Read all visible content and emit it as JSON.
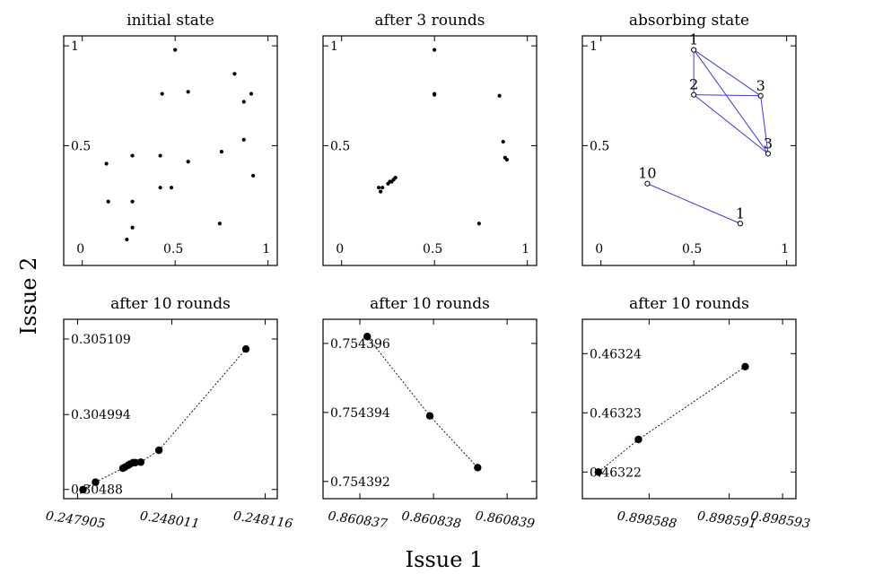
{
  "figure": {
    "xlabel": "Issue 1",
    "ylabel": "Issue 2"
  },
  "chart_data": [
    {
      "type": "scatter",
      "title": "initial state",
      "xlim": [
        -0.1,
        1.05
      ],
      "ylim": [
        -0.1,
        1.05
      ],
      "xticks": [
        0,
        0.5,
        1
      ],
      "yticks": [
        0.5,
        1
      ],
      "xtick_labels": [
        "0",
        "0.5",
        "1"
      ],
      "ytick_labels": [
        "0.5",
        "1"
      ],
      "corner_label": "0",
      "points": [
        [
          0.5,
          0.98
        ],
        [
          0.82,
          0.86
        ],
        [
          0.43,
          0.76
        ],
        [
          0.57,
          0.77
        ],
        [
          0.91,
          0.76
        ],
        [
          0.87,
          0.72
        ],
        [
          0.87,
          0.53
        ],
        [
          0.27,
          0.45
        ],
        [
          0.42,
          0.45
        ],
        [
          0.75,
          0.47
        ],
        [
          0.13,
          0.41
        ],
        [
          0.57,
          0.42
        ],
        [
          0.92,
          0.35
        ],
        [
          0.42,
          0.29
        ],
        [
          0.48,
          0.29
        ],
        [
          0.14,
          0.22
        ],
        [
          0.27,
          0.22
        ],
        [
          0.27,
          0.09
        ],
        [
          0.24,
          0.03
        ],
        [
          0.74,
          0.11
        ]
      ]
    },
    {
      "type": "scatter",
      "title": "after 3 rounds",
      "xlim": [
        -0.1,
        1.05
      ],
      "ylim": [
        -0.1,
        1.05
      ],
      "xticks": [
        0,
        0.5,
        1
      ],
      "yticks": [
        0.5,
        1
      ],
      "xtick_labels": [
        "0",
        "0.5",
        "1"
      ],
      "ytick_labels": [
        "0.5",
        "1"
      ],
      "corner_label": "0",
      "points": [
        [
          0.5,
          0.98
        ],
        [
          0.5,
          0.76
        ],
        [
          0.5,
          0.755
        ],
        [
          0.85,
          0.75
        ],
        [
          0.87,
          0.52
        ],
        [
          0.88,
          0.44
        ],
        [
          0.89,
          0.43
        ],
        [
          0.2,
          0.29
        ],
        [
          0.22,
          0.29
        ],
        [
          0.21,
          0.27
        ],
        [
          0.25,
          0.31
        ],
        [
          0.26,
          0.32
        ],
        [
          0.27,
          0.32
        ],
        [
          0.28,
          0.33
        ],
        [
          0.29,
          0.34
        ],
        [
          0.74,
          0.11
        ]
      ]
    },
    {
      "type": "scatter",
      "title": "absorbing state",
      "xlim": [
        -0.1,
        1.05
      ],
      "ylim": [
        -0.1,
        1.05
      ],
      "xticks": [
        0,
        0.5,
        1
      ],
      "yticks": [
        0.5,
        1
      ],
      "xtick_labels": [
        "0",
        "0.5",
        "1"
      ],
      "ytick_labels": [
        "0.5",
        "1"
      ],
      "corner_label": "0",
      "points": [
        {
          "x": 0.5,
          "y": 0.98,
          "label": "1"
        },
        {
          "x": 0.5,
          "y": 0.755,
          "label": "2"
        },
        {
          "x": 0.86,
          "y": 0.75,
          "label": "3"
        },
        {
          "x": 0.9,
          "y": 0.46,
          "label": "3"
        },
        {
          "x": 0.25,
          "y": 0.31,
          "label": "10"
        },
        {
          "x": 0.75,
          "y": 0.11,
          "label": "1"
        }
      ],
      "edges": [
        [
          0,
          1
        ],
        [
          0,
          2
        ],
        [
          0,
          3
        ],
        [
          1,
          2
        ],
        [
          1,
          3
        ],
        [
          2,
          3
        ],
        [
          4,
          5
        ]
      ],
      "edge_color": "#3b3bd6"
    },
    {
      "type": "scatter",
      "title": "after 10 rounds",
      "xlim": [
        0.2478894,
        0.2481296
      ],
      "ylim": [
        0.304866,
        0.305139
      ],
      "xticks": [
        0.247905,
        0.248011,
        0.248116
      ],
      "xtick_labels": [
        "0.247905",
        "0.248011",
        "0.248116"
      ],
      "yticks": [
        0.30488,
        0.304994,
        0.305109
      ],
      "ytick_labels": [
        "0.30488",
        "0.304994",
        "0.305109"
      ],
      "points": [
        [
          0.2479111,
          0.3048798
        ],
        [
          0.2479252,
          0.3048911
        ],
        [
          0.247956,
          0.3049123
        ],
        [
          0.2479583,
          0.304914
        ],
        [
          0.247962,
          0.3049169
        ],
        [
          0.247964,
          0.3049186
        ],
        [
          0.2479676,
          0.3049209
        ],
        [
          0.24797,
          0.3049209
        ],
        [
          0.2479761,
          0.3049216
        ],
        [
          0.2479965,
          0.3049397
        ],
        [
          0.2480943,
          0.3050937
        ]
      ],
      "dashed_line": true
    },
    {
      "type": "scatter",
      "title": "after 10 rounds",
      "xlim": [
        0.8608365,
        0.8608394
      ],
      "ylim": [
        0.7543915,
        0.7543967
      ],
      "xticks": [
        0.860837,
        0.860838,
        0.860839
      ],
      "xtick_labels": [
        "0.860837",
        "0.860838",
        "0.860839"
      ],
      "yticks": [
        0.754392,
        0.754394,
        0.754396
      ],
      "ytick_labels": [
        "0.754392",
        "0.754394",
        "0.754396"
      ],
      "points": [
        [
          0.8608371,
          0.7543962
        ],
        [
          0.86083795,
          0.7543939
        ],
        [
          0.8608386,
          0.7543924
        ]
      ],
      "dashed_line": true
    },
    {
      "type": "scatter",
      "title": "after 10 rounds",
      "xlim": [
        0.8985855,
        0.8985935
      ],
      "ylim": [
        0.4632155,
        0.4632458
      ],
      "xticks": [
        0.898588,
        0.898591,
        0.898593
      ],
      "xtick_labels": [
        "0.898588",
        "0.898591",
        "0.898593"
      ],
      "yticks": [
        0.46322,
        0.46323,
        0.46324
      ],
      "ytick_labels": [
        "0.46322",
        "0.46323",
        "0.46324"
      ],
      "points": [
        [
          0.8985861,
          0.46322
        ],
        [
          0.8985876,
          0.4632255
        ],
        [
          0.8985916,
          0.4632378
        ]
      ],
      "dashed_line": true
    }
  ]
}
